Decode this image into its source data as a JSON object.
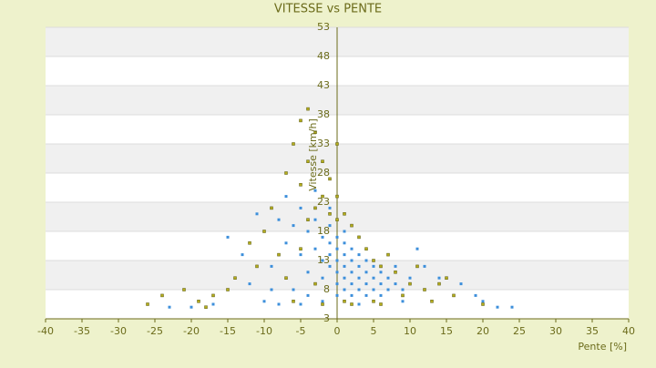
{
  "chart_data": {
    "type": "scatter",
    "title": "VITESSE vs PENTE",
    "x_label": "Pente [%]",
    "y_label": "Vitesse [km/h]",
    "xlim": [
      -40,
      40
    ],
    "xticks": [
      -40,
      -35,
      -30,
      -25,
      -20,
      -15,
      -10,
      -5,
      0,
      5,
      10,
      15,
      20,
      25,
      30,
      35,
      40
    ],
    "ylim": [
      3,
      53
    ],
    "yticks": [
      3,
      8,
      13,
      18,
      23,
      28,
      33,
      38,
      43,
      48,
      53
    ],
    "grid": true,
    "series": [
      {
        "color": "#3d8fdb",
        "x": [
          -23,
          -20,
          -17,
          -15,
          -12,
          -10,
          -9,
          -8,
          -7,
          -7,
          -6,
          -6,
          -5,
          -5,
          -4,
          -4,
          -4,
          -3,
          -3,
          -3,
          -2,
          -2,
          -2,
          -2,
          -1,
          -1,
          -1,
          -1,
          -1,
          0,
          0,
          0,
          0,
          0,
          0,
          1,
          1,
          1,
          1,
          1,
          1,
          2,
          2,
          2,
          2,
          2,
          3,
          3,
          3,
          3,
          4,
          4,
          4,
          4,
          5,
          5,
          5,
          6,
          6,
          6,
          7,
          7,
          8,
          8,
          9,
          10,
          11,
          12,
          14,
          17,
          19,
          20,
          22,
          24,
          -11,
          -13,
          -9,
          -8,
          -5,
          3,
          9
        ],
        "values": [
          5,
          5,
          5.5,
          17,
          9,
          6,
          12,
          20,
          16,
          24,
          19,
          8,
          14,
          22,
          18,
          11,
          7,
          15,
          20,
          25,
          13,
          17,
          10,
          6,
          14,
          16,
          19,
          12,
          22,
          11,
          13,
          15,
          17,
          9,
          7,
          10,
          12,
          14,
          16,
          8,
          18,
          9,
          11,
          13,
          15,
          7,
          10,
          12,
          14,
          8,
          9,
          11,
          13,
          7,
          8,
          10,
          12,
          9,
          11,
          7,
          8,
          10,
          9,
          12,
          8,
          10,
          15,
          12,
          10,
          9,
          7,
          6,
          5,
          5,
          21,
          14,
          8,
          5.5,
          5.5,
          5.5,
          6
        ]
      },
      {
        "color": "#b5ad1c",
        "x": [
          -26,
          -24,
          -21,
          -19,
          -17,
          -14,
          -12,
          -11,
          -10,
          -9,
          -8,
          -7,
          -7,
          -6,
          -6,
          -5,
          -5,
          -5,
          -4,
          -4,
          -4,
          -3,
          -3,
          -3,
          -2,
          -2,
          -2,
          -1,
          -1,
          0,
          0,
          0,
          1,
          1,
          2,
          2,
          3,
          4,
          5,
          5,
          6,
          7,
          8,
          9,
          10,
          11,
          12,
          14,
          15,
          16,
          20,
          -15,
          -18,
          6,
          13
        ],
        "values": [
          5.5,
          7,
          8,
          6,
          7,
          10,
          16,
          12,
          18,
          22,
          14,
          28,
          10,
          33,
          6,
          37,
          26,
          15,
          39,
          30,
          20,
          35,
          22,
          9,
          30,
          24,
          5.5,
          27,
          21,
          33,
          24,
          20,
          21,
          6,
          19,
          5.5,
          17,
          15,
          13,
          6,
          12,
          14,
          11,
          7,
          9,
          12,
          8,
          9,
          10,
          7,
          5.5,
          8,
          5,
          5.5,
          6
        ]
      }
    ]
  }
}
